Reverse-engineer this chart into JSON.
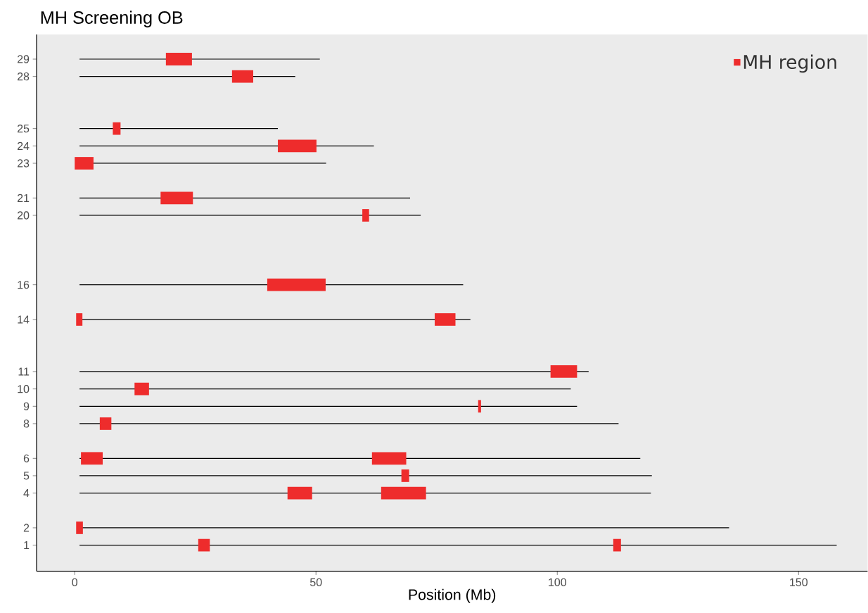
{
  "chart_data": {
    "type": "bar",
    "orientation": "horizontal",
    "title": "MH Screening OB",
    "xlabel": "Position (Mb)",
    "categories": [
      "29",
      "28",
      null,
      null,
      "25",
      "24",
      "23",
      null,
      "21",
      "20",
      null,
      null,
      null,
      "16",
      null,
      "14",
      null,
      null,
      "11",
      "10",
      "9",
      "8",
      null,
      "6",
      "5",
      "4",
      null,
      "2",
      "1"
    ],
    "series": [
      {
        "color": "#000000",
        "line_style": "solid",
        "base": [
          1,
          1,
          null,
          null,
          1,
          1,
          1,
          null,
          1,
          1,
          null,
          null,
          null,
          1,
          null,
          1,
          null,
          null,
          1,
          1,
          1,
          1,
          null,
          1,
          1,
          1,
          null,
          1,
          1
        ],
        "values": [
          49.8,
          44.7,
          null,
          null,
          41.1,
          61.0,
          51.1,
          null,
          68.5,
          70.7,
          null,
          null,
          null,
          79.5,
          null,
          81.0,
          null,
          null,
          105.5,
          101.8,
          103.1,
          111.7,
          null,
          116.2,
          118.6,
          118.4,
          null,
          134.6,
          156.9
        ]
      },
      {
        "name": "MH region",
        "color": "#ee2c2c",
        "base": [
          18.9,
          32.6,
          null,
          null,
          7.9,
          42.1,
          0,
          null,
          17.8,
          59.6,
          null,
          null,
          null,
          39.9,
          null,
          0.3,
          null,
          null,
          98.6,
          12.4,
          83.6,
          5.2,
          null,
          1.3,
          67.7,
          44.1,
          null,
          0.3,
          25.6
        ],
        "values": [
          5.4,
          4.4,
          null,
          null,
          1.6,
          8.0,
          3.9,
          null,
          6.7,
          1.4,
          null,
          null,
          null,
          12.1,
          null,
          1.3,
          null,
          null,
          5.5,
          3.0,
          0.6,
          2.4,
          null,
          4.5,
          1.6,
          5.1,
          null,
          1.4,
          2.4
        ]
      },
      {
        "color": "#ee2c2c",
        "base": [
          null,
          null,
          null,
          null,
          null,
          null,
          null,
          null,
          null,
          null,
          null,
          null,
          null,
          null,
          null,
          74.6,
          null,
          null,
          null,
          null,
          null,
          null,
          null,
          61.6,
          null,
          63.5,
          null,
          null,
          111.6
        ],
        "values": [
          null,
          null,
          null,
          null,
          null,
          null,
          null,
          null,
          null,
          null,
          null,
          null,
          null,
          null,
          null,
          4.3,
          null,
          null,
          null,
          null,
          null,
          null,
          null,
          7.1,
          null,
          9.3,
          null,
          null,
          1.6
        ]
      }
    ],
    "xlim": [
      -7.9,
      164.3
    ],
    "xticks": [
      0,
      50,
      100,
      150
    ],
    "legend": "top right"
  }
}
